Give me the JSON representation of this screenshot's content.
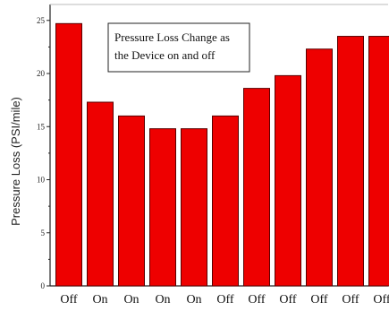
{
  "chart_data": {
    "type": "bar",
    "categories": [
      "Off",
      "On",
      "On",
      "On",
      "On",
      "Off",
      "Off",
      "Off",
      "Off",
      "Off",
      "Off"
    ],
    "values": [
      24.7,
      17.3,
      16.0,
      14.8,
      14.8,
      16.0,
      18.6,
      19.8,
      22.3,
      23.5,
      23.5
    ],
    "ylabel": "Pressure Loss (PSI/mile)",
    "ylim": [
      0,
      26.5
    ],
    "yticks": [
      0,
      5,
      10,
      15,
      20,
      25
    ],
    "yticklabels": [
      "0",
      "5",
      "10",
      "15",
      "20",
      "25"
    ],
    "annotation_lines": [
      "Pressure Loss Change as",
      "the Device on and off"
    ],
    "bar_color": "#ee0000",
    "grid": false,
    "legend": "none"
  }
}
